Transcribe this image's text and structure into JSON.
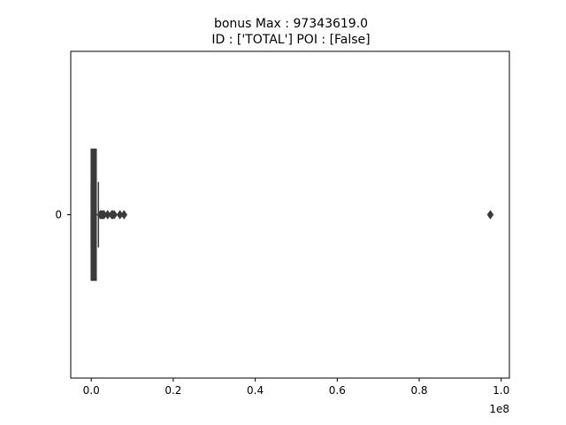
{
  "chart_data": {
    "type": "boxplot",
    "orientation": "horizontal",
    "title_line1": "bonus  Max : 97343619.0",
    "title_line2": "ID : ['TOTAL']  POI : [False]",
    "xlabel": "",
    "ylabel": "",
    "x_offset_label": "1e8",
    "x_unit_scale": 100000000,
    "xlim": [
      -5000000,
      102000000
    ],
    "xticks": [
      0,
      0.2,
      0.4,
      0.6,
      0.8,
      1.0
    ],
    "xtick_labels": [
      "0.0",
      "0.2",
      "0.4",
      "0.6",
      "0.8",
      "1.0"
    ],
    "categories": [
      "0"
    ],
    "grid": false,
    "box": {
      "q1": 0,
      "median": 300000,
      "q3": 1200000,
      "whisker_low": 0,
      "whisker_high": 1750000
    },
    "outliers": [
      2200000,
      2500000,
      2700000,
      3000000,
      3100000,
      4000000,
      5000000,
      5200000,
      5600000,
      7000000,
      8000000,
      97343619
    ],
    "box_color": "#3a3a3a"
  }
}
